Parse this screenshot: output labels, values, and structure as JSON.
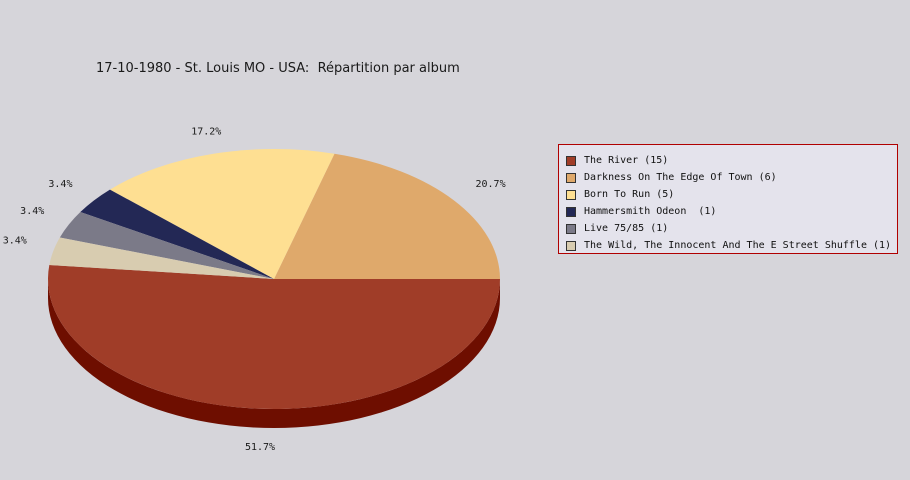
{
  "chart_data": {
    "type": "pie",
    "title": "17-10-1980 - St. Louis MO - USA:  Répartition par album",
    "legend_position": "right",
    "slices": [
      {
        "label": "The River (15)",
        "value": 15,
        "percent_label": "51.7%",
        "color": "#a03d28",
        "shadow": "#6e0e00"
      },
      {
        "label": "Darkness On The Edge Of Town (6)",
        "value": 6,
        "percent_label": "20.7%",
        "color": "#dfa96b",
        "shadow": "#a9733a"
      },
      {
        "label": "Born To Run (5)",
        "value": 5,
        "percent_label": "17.2%",
        "color": "#fedf92",
        "shadow": "#c8a95c"
      },
      {
        "label": "Hammersmith Odeon  (1)",
        "value": 1,
        "percent_label": "3.4%",
        "color": "#232855",
        "shadow": "#10132b"
      },
      {
        "label": "Live 75/85 (1)",
        "value": 1,
        "percent_label": "3.4%",
        "color": "#7b7a88",
        "shadow": "#4e4d58"
      },
      {
        "label": "The Wild, The Innocent And The E Street Shuffle (1)",
        "value": 1,
        "percent_label": "3.4%",
        "color": "#d8ccb0",
        "shadow": "#a89c80"
      }
    ]
  }
}
